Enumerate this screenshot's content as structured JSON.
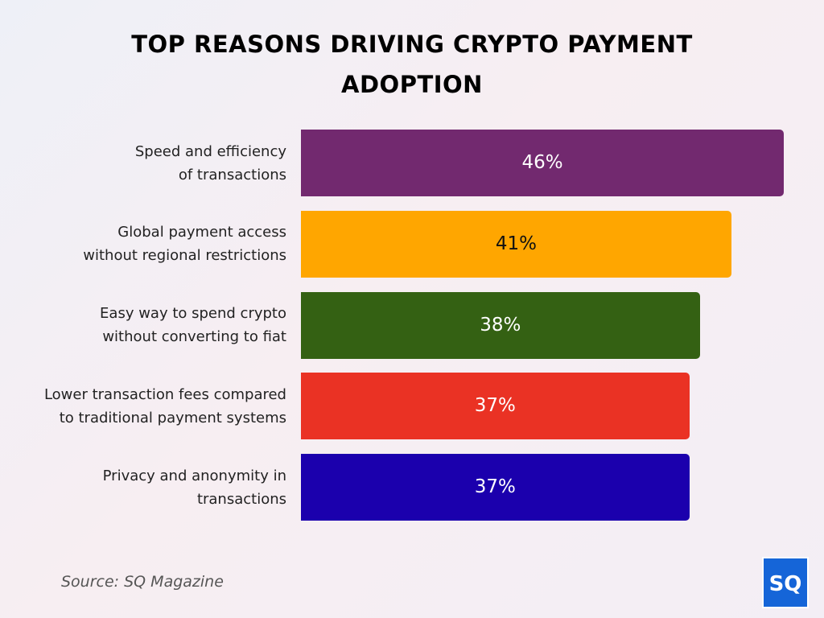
{
  "chart_data": {
    "type": "bar",
    "orientation": "horizontal",
    "title": "TOP REASONS DRIVING CRYPTO PAYMENT\nADOPTION",
    "categories": [
      "Speed and efficiency\nof transactions",
      "Global payment access\nwithout regional restrictions",
      "Easy way to spend crypto\nwithout converting to fiat",
      "Lower transaction fees compared\nto traditional payment systems",
      "Privacy and anonymity in\ntransactions"
    ],
    "values": [
      46,
      41,
      38,
      37,
      37
    ],
    "value_labels": [
      "46%",
      "41%",
      "38%",
      "37%",
      "37%"
    ],
    "colors": [
      "#72296f",
      "#ffa600",
      "#346113",
      "#ea3224",
      "#1b00ad"
    ],
    "source": "Source: SQ Magazine",
    "logo": "SQ"
  }
}
